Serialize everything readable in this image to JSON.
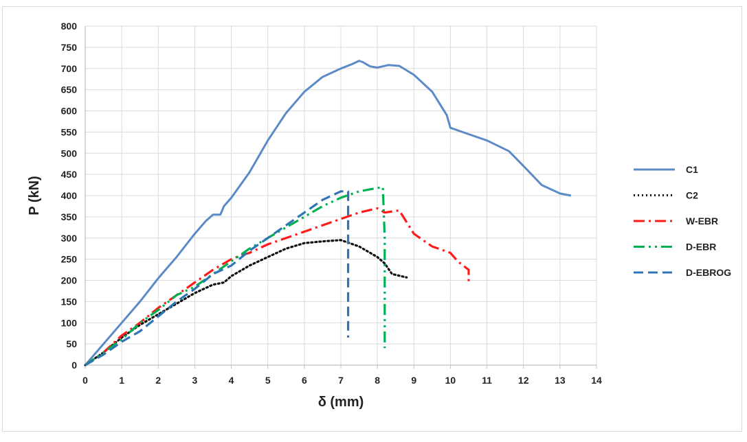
{
  "chart_data": {
    "type": "line",
    "xlabel": "δ (mm)",
    "ylabel": "P (kN)",
    "xlim": [
      0,
      14
    ],
    "ylim": [
      0,
      800
    ],
    "xticks": [
      0,
      1,
      2,
      3,
      4,
      5,
      6,
      7,
      8,
      9,
      10,
      11,
      12,
      13,
      14
    ],
    "yticks": [
      0,
      50,
      100,
      150,
      200,
      250,
      300,
      350,
      400,
      450,
      500,
      550,
      600,
      650,
      700,
      750,
      800
    ],
    "grid": true,
    "legend_position": "right",
    "series": [
      {
        "name": "C1",
        "color": "#5b8ac6",
        "dash": "solid",
        "points": [
          [
            0,
            0
          ],
          [
            0.5,
            50
          ],
          [
            1,
            100
          ],
          [
            1.5,
            150
          ],
          [
            2,
            205
          ],
          [
            2.5,
            255
          ],
          [
            3,
            310
          ],
          [
            3.3,
            340
          ],
          [
            3.5,
            355
          ],
          [
            3.7,
            355
          ],
          [
            3.8,
            375
          ],
          [
            4,
            395
          ],
          [
            4.5,
            455
          ],
          [
            5,
            530
          ],
          [
            5.5,
            595
          ],
          [
            6,
            645
          ],
          [
            6.5,
            680
          ],
          [
            7,
            700
          ],
          [
            7.3,
            710
          ],
          [
            7.5,
            718
          ],
          [
            7.6,
            715
          ],
          [
            7.8,
            705
          ],
          [
            8,
            702
          ],
          [
            8.3,
            708
          ],
          [
            8.6,
            706
          ],
          [
            9,
            685
          ],
          [
            9.5,
            645
          ],
          [
            9.9,
            590
          ],
          [
            10,
            560
          ],
          [
            10.5,
            545
          ],
          [
            11,
            530
          ],
          [
            11.6,
            505
          ],
          [
            12,
            470
          ],
          [
            12.5,
            425
          ],
          [
            13,
            405
          ],
          [
            13.3,
            400
          ]
        ]
      },
      {
        "name": "C2",
        "color": "#111111",
        "dash": "dot",
        "points": [
          [
            0,
            0
          ],
          [
            0.5,
            30
          ],
          [
            1,
            65
          ],
          [
            1.5,
            95
          ],
          [
            2,
            120
          ],
          [
            2.5,
            145
          ],
          [
            3,
            170
          ],
          [
            3.5,
            190
          ],
          [
            3.8,
            195
          ],
          [
            4,
            210
          ],
          [
            4.5,
            235
          ],
          [
            5,
            255
          ],
          [
            5.5,
            275
          ],
          [
            6,
            288
          ],
          [
            6.5,
            292
          ],
          [
            7,
            295
          ],
          [
            7.5,
            280
          ],
          [
            8,
            255
          ],
          [
            8.2,
            240
          ],
          [
            8.4,
            215
          ],
          [
            8.8,
            207
          ]
        ]
      },
      {
        "name": "W-EBR",
        "color": "#ff1a1a",
        "dash": "dashdot",
        "points": [
          [
            0,
            0
          ],
          [
            0.5,
            30
          ],
          [
            1,
            70
          ],
          [
            1.5,
            100
          ],
          [
            2,
            135
          ],
          [
            2.5,
            165
          ],
          [
            3,
            195
          ],
          [
            3.5,
            225
          ],
          [
            4,
            250
          ],
          [
            4.3,
            260
          ],
          [
            4.5,
            265
          ],
          [
            5,
            285
          ],
          [
            5.5,
            300
          ],
          [
            6,
            315
          ],
          [
            6.5,
            330
          ],
          [
            7,
            345
          ],
          [
            7.5,
            360
          ],
          [
            8,
            370
          ],
          [
            8.2,
            360
          ],
          [
            8.6,
            365
          ],
          [
            9,
            310
          ],
          [
            9.5,
            280
          ],
          [
            10,
            265
          ],
          [
            10.2,
            245
          ],
          [
            10.5,
            225
          ],
          [
            10.5,
            195
          ]
        ]
      },
      {
        "name": "D-EBR",
        "color": "#00b050",
        "dash": "dashdotdot",
        "points": [
          [
            0,
            0
          ],
          [
            0.5,
            30
          ],
          [
            1,
            60
          ],
          [
            1.5,
            100
          ],
          [
            2,
            130
          ],
          [
            2.5,
            165
          ],
          [
            3,
            185
          ],
          [
            3.5,
            215
          ],
          [
            4,
            245
          ],
          [
            4.5,
            275
          ],
          [
            5,
            300
          ],
          [
            5.5,
            325
          ],
          [
            6,
            350
          ],
          [
            6.5,
            375
          ],
          [
            7,
            395
          ],
          [
            7.5,
            410
          ],
          [
            8,
            418
          ],
          [
            8.15,
            420
          ],
          [
            8.2,
            300
          ],
          [
            8.2,
            200
          ],
          [
            8.2,
            40
          ]
        ]
      },
      {
        "name": "D-EBROG",
        "color": "#2e75b6",
        "dash": "dash",
        "points": [
          [
            0,
            0
          ],
          [
            0.5,
            25
          ],
          [
            1,
            55
          ],
          [
            1.5,
            80
          ],
          [
            2,
            115
          ],
          [
            2.5,
            150
          ],
          [
            3,
            180
          ],
          [
            3.5,
            215
          ],
          [
            4,
            235
          ],
          [
            4.5,
            270
          ],
          [
            5,
            300
          ],
          [
            5.5,
            330
          ],
          [
            6,
            360
          ],
          [
            6.5,
            390
          ],
          [
            7,
            410
          ],
          [
            7.2,
            410
          ],
          [
            7.2,
            300
          ],
          [
            7.2,
            150
          ],
          [
            7.2,
            65
          ]
        ]
      }
    ]
  }
}
